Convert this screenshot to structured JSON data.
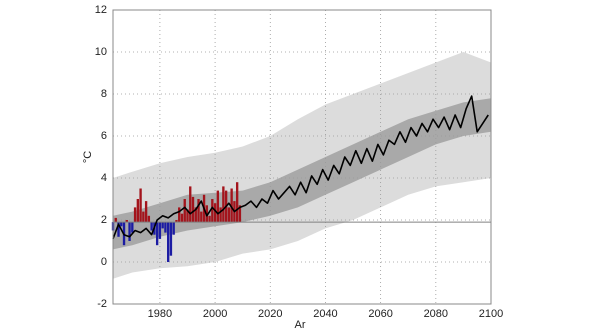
{
  "chart_data": {
    "type": "line",
    "xlabel": "Ar",
    "ylabel": "°C",
    "xlim": [
      1963,
      2100
    ],
    "ylim": [
      -2,
      12
    ],
    "xticks": [
      1980,
      2000,
      2020,
      2040,
      2060,
      2080,
      2100
    ],
    "yticks": [
      -2,
      0,
      2,
      4,
      6,
      8,
      10,
      12
    ],
    "grid": true,
    "baseline": 1.9,
    "baseline_color": "#808080",
    "bands": [
      {
        "color": "#dcdcdc",
        "x": [
          1963,
          1970,
          1980,
          1990,
          2000,
          2010,
          2020,
          2030,
          2040,
          2050,
          2060,
          2070,
          2080,
          2090,
          2100
        ],
        "lower": [
          -0.8,
          -0.5,
          -0.3,
          -0.2,
          0.0,
          0.4,
          0.6,
          1.0,
          1.6,
          2.0,
          2.6,
          3.2,
          3.6,
          3.8,
          4.0
        ],
        "upper": [
          4.0,
          4.3,
          4.7,
          5.0,
          5.2,
          5.5,
          6.0,
          6.8,
          7.5,
          8.0,
          8.5,
          9.0,
          9.5,
          10.0,
          9.5
        ]
      },
      {
        "color": "#a9a9a9",
        "x": [
          1963,
          1970,
          1980,
          1990,
          2000,
          2010,
          2020,
          2030,
          2040,
          2050,
          2060,
          2070,
          2080,
          2090,
          2100
        ],
        "lower": [
          0.6,
          0.8,
          1.2,
          1.5,
          1.7,
          1.9,
          2.2,
          2.6,
          3.2,
          3.8,
          4.4,
          5.0,
          5.6,
          6.0,
          6.2
        ],
        "upper": [
          2.2,
          2.4,
          2.8,
          3.2,
          3.3,
          3.4,
          3.8,
          4.4,
          5.0,
          5.6,
          6.2,
          6.8,
          7.2,
          7.6,
          7.8
        ]
      }
    ],
    "bars": {
      "above_color": "#a3141c",
      "below_color": "#1c1ca3",
      "x": [
        1963,
        1964,
        1965,
        1966,
        1967,
        1968,
        1969,
        1970,
        1971,
        1972,
        1973,
        1974,
        1975,
        1976,
        1977,
        1978,
        1979,
        1980,
        1981,
        1982,
        1983,
        1984,
        1985,
        1986,
        1987,
        1988,
        1989,
        1990,
        1991,
        1992,
        1993,
        1994,
        1995,
        1996,
        1997,
        1998,
        1999,
        2000,
        2001,
        2002,
        2003,
        2004,
        2005,
        2006,
        2007,
        2008,
        2009
      ],
      "values": [
        1.5,
        2.1,
        1.2,
        1.7,
        0.8,
        2.0,
        1.0,
        1.4,
        2.6,
        3.0,
        3.5,
        2.4,
        2.9,
        2.2,
        1.5,
        1.3,
        0.8,
        1.1,
        1.6,
        1.4,
        0.0,
        0.3,
        1.3,
        2.0,
        2.6,
        2.3,
        3.0,
        2.5,
        3.6,
        3.1,
        2.6,
        3.0,
        2.4,
        3.2,
        2.7,
        2.2,
        3.0,
        2.8,
        3.4,
        2.6,
        3.6,
        3.4,
        2.6,
        3.5,
        2.9,
        3.8,
        2.7
      ]
    },
    "series": [
      {
        "color": "#000000",
        "x": [
          1963,
          1965,
          1967,
          1969,
          1971,
          1973,
          1975,
          1977,
          1979,
          1981,
          1983,
          1985,
          1987,
          1989,
          1991,
          1993,
          1995,
          1997,
          1999,
          2001,
          2003,
          2005,
          2007,
          2009,
          2011,
          2013,
          2015,
          2017,
          2019,
          2021,
          2023,
          2025,
          2027,
          2029,
          2031,
          2033,
          2035,
          2037,
          2039,
          2041,
          2043,
          2045,
          2047,
          2049,
          2051,
          2053,
          2055,
          2057,
          2059,
          2061,
          2063,
          2065,
          2067,
          2069,
          2071,
          2073,
          2075,
          2077,
          2079,
          2081,
          2083,
          2085,
          2087,
          2089,
          2091,
          2093,
          2095,
          2097,
          2099
        ],
        "values": [
          1.1,
          1.8,
          1.3,
          1.2,
          1.5,
          1.4,
          1.6,
          1.3,
          2.0,
          2.2,
          2.1,
          2.3,
          2.4,
          2.6,
          2.3,
          2.5,
          2.9,
          2.2,
          2.6,
          2.3,
          2.5,
          2.8,
          2.4,
          2.6,
          2.7,
          2.9,
          2.6,
          3.0,
          2.8,
          3.4,
          3.0,
          3.3,
          3.6,
          3.2,
          3.8,
          3.3,
          4.1,
          3.7,
          4.4,
          3.9,
          4.6,
          4.2,
          5.0,
          4.6,
          5.3,
          4.7,
          5.4,
          4.8,
          5.6,
          5.1,
          5.8,
          5.6,
          6.2,
          5.7,
          6.4,
          6.0,
          6.6,
          6.2,
          6.8,
          6.4,
          6.9,
          6.3,
          7.0,
          6.4,
          7.3,
          7.9,
          6.2,
          6.6,
          7.0
        ]
      }
    ]
  }
}
